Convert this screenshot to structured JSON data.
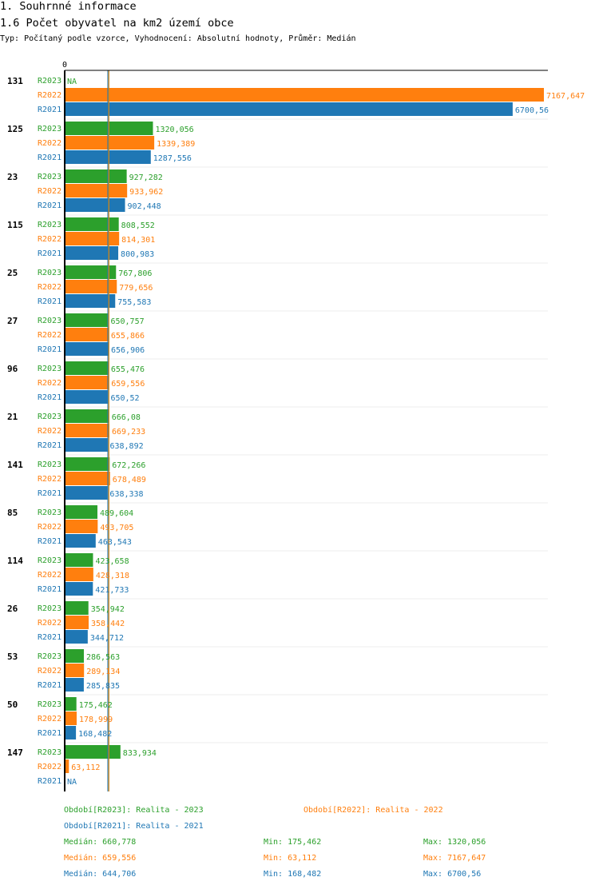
{
  "header": {
    "title": "1. Souhrnné informace",
    "subtitle": "1.6 Počet obyvatel na km2 území obce",
    "meta": "Typ: Počítaný podle vzorce, Vyhodnocení: Absolutní hodnoty, Průměr: Medián"
  },
  "colors": {
    "R2023": "#2ca02c",
    "R2022": "#ff7f0e",
    "R2021": "#1f77b4"
  },
  "chart_data": {
    "type": "bar",
    "orientation": "horizontal",
    "zero_label": "0",
    "na_label": "NA",
    "categories": [
      "131",
      "125",
      "23",
      "115",
      "25",
      "27",
      "96",
      "21",
      "141",
      "85",
      "114",
      "26",
      "53",
      "50",
      "147"
    ],
    "series": [
      {
        "name": "R2023",
        "values": [
          null,
          1320.056,
          927.282,
          808.552,
          767.806,
          650.757,
          655.476,
          666.08,
          672.266,
          489.604,
          423.658,
          354.942,
          286.563,
          175.462,
          833.934
        ],
        "labels": [
          "NA",
          "1320,056",
          "927,282",
          "808,552",
          "767,806",
          "650,757",
          "655,476",
          "666,08",
          "672,266",
          "489,604",
          "423,658",
          "354,942",
          "286,563",
          "175,462",
          "833,934"
        ]
      },
      {
        "name": "R2022",
        "values": [
          7167.647,
          1339.389,
          933.962,
          814.301,
          779.656,
          655.866,
          659.556,
          669.233,
          678.489,
          493.705,
          428.318,
          358.442,
          289.134,
          178.999,
          63.112
        ],
        "labels": [
          "7167,647",
          "1339,389",
          "933,962",
          "814,301",
          "779,656",
          "655,866",
          "659,556",
          "669,233",
          "678,489",
          "493,705",
          "428,318",
          "358,442",
          "289,134",
          "178,999",
          "63,112"
        ]
      },
      {
        "name": "R2021",
        "values": [
          6700.56,
          1287.556,
          902.448,
          800.983,
          755.583,
          656.906,
          650.52,
          638.892,
          638.338,
          463.543,
          421.733,
          344.712,
          285.835,
          168.482,
          null
        ],
        "labels": [
          "6700,56",
          "1287,556",
          "902,448",
          "800,983",
          "755,583",
          "656,906",
          "650,52",
          "638,892",
          "638,338",
          "463,543",
          "421,733",
          "344,712",
          "285,835",
          "168,482",
          "NA"
        ]
      }
    ],
    "medians": [
      660.778,
      659.556,
      644.706
    ],
    "xlim": [
      0,
      7167.647
    ]
  },
  "legend": {
    "period_2023": "Období[R2023]: Realita - 2023",
    "period_2022": "Období[R2022]: Realita - 2022",
    "period_2021": "Období[R2021]: Realita - 2021"
  },
  "stats": [
    {
      "median": "Medián: 660,778",
      "min": "Min: 175,462",
      "max": "Max: 1320,056"
    },
    {
      "median": "Medián: 659,556",
      "min": "Min: 63,112",
      "max": "Max: 7167,647"
    },
    {
      "median": "Medián: 644,706",
      "min": "Min: 168,482",
      "max": "Max: 6700,56"
    }
  ]
}
